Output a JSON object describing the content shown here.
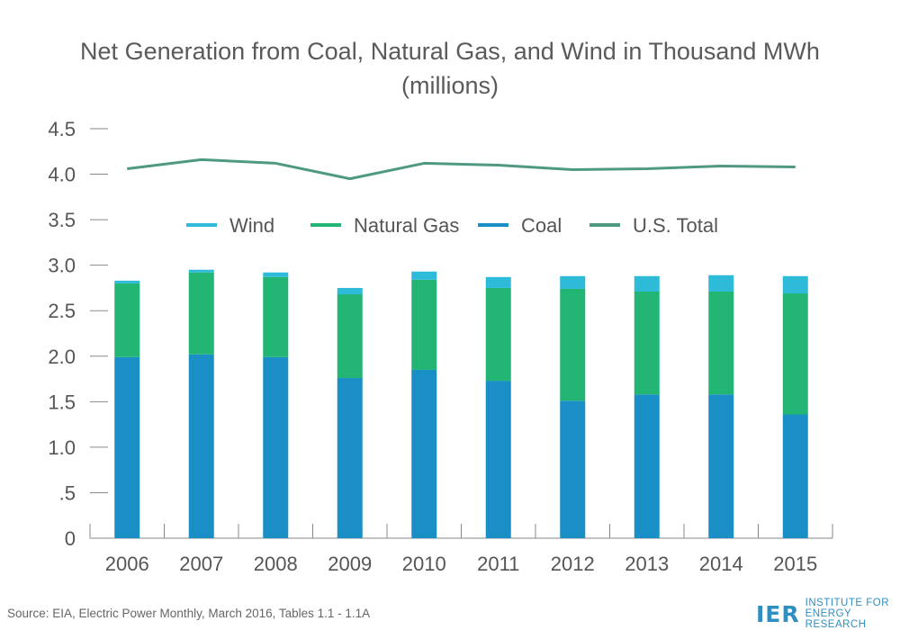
{
  "chart_data": {
    "type": "bar",
    "title": "Net Generation from Coal, Natural Gas, and Wind in Thousand MWh",
    "subtitle": "(millions)",
    "categories": [
      "2006",
      "2007",
      "2008",
      "2009",
      "2010",
      "2011",
      "2012",
      "2013",
      "2014",
      "2015"
    ],
    "stacked": true,
    "series": [
      {
        "name": "Coal",
        "kind": "bar",
        "color": "#1a8fc6",
        "values": [
          1.99,
          2.02,
          1.99,
          1.76,
          1.85,
          1.73,
          1.51,
          1.58,
          1.58,
          1.36
        ]
      },
      {
        "name": "Natural Gas",
        "kind": "bar",
        "color": "#22b573",
        "values": [
          0.81,
          0.9,
          0.88,
          0.92,
          0.99,
          1.02,
          1.23,
          1.13,
          1.13,
          1.33
        ]
      },
      {
        "name": "Wind",
        "kind": "bar",
        "color": "#2ebad9",
        "values": [
          0.03,
          0.03,
          0.05,
          0.07,
          0.09,
          0.12,
          0.14,
          0.17,
          0.18,
          0.19
        ]
      },
      {
        "name": "U.S. Total",
        "kind": "line",
        "color": "#4f9a7e",
        "values": [
          4.06,
          4.16,
          4.12,
          3.95,
          4.12,
          4.1,
          4.05,
          4.06,
          4.09,
          4.08
        ]
      }
    ],
    "legend_order": [
      "Wind",
      "Natural Gas",
      "Coal",
      "U.S. Total"
    ],
    "legend_position": "center",
    "ylim": [
      0,
      4.5
    ],
    "yticks": [
      {
        "value": 0,
        "label": "0"
      },
      {
        "value": 0.5,
        "label": ".5"
      },
      {
        "value": 1.0,
        "label": "1.0"
      },
      {
        "value": 1.5,
        "label": "1.5"
      },
      {
        "value": 2.0,
        "label": "2.0"
      },
      {
        "value": 2.5,
        "label": "2.5"
      },
      {
        "value": 3.0,
        "label": "3.0"
      },
      {
        "value": 3.5,
        "label": "3.5"
      },
      {
        "value": 4.0,
        "label": "4.0"
      },
      {
        "value": 4.5,
        "label": "4.5"
      }
    ],
    "grid": false
  },
  "footer": {
    "source": "Source: EIA, Electric Power Monthly, March 2016, Tables 1.1 - 1.1A",
    "logo_mark": "IER",
    "logo_line1": "INSTITUTE FOR",
    "logo_line2": "ENERGY RESEARCH"
  }
}
